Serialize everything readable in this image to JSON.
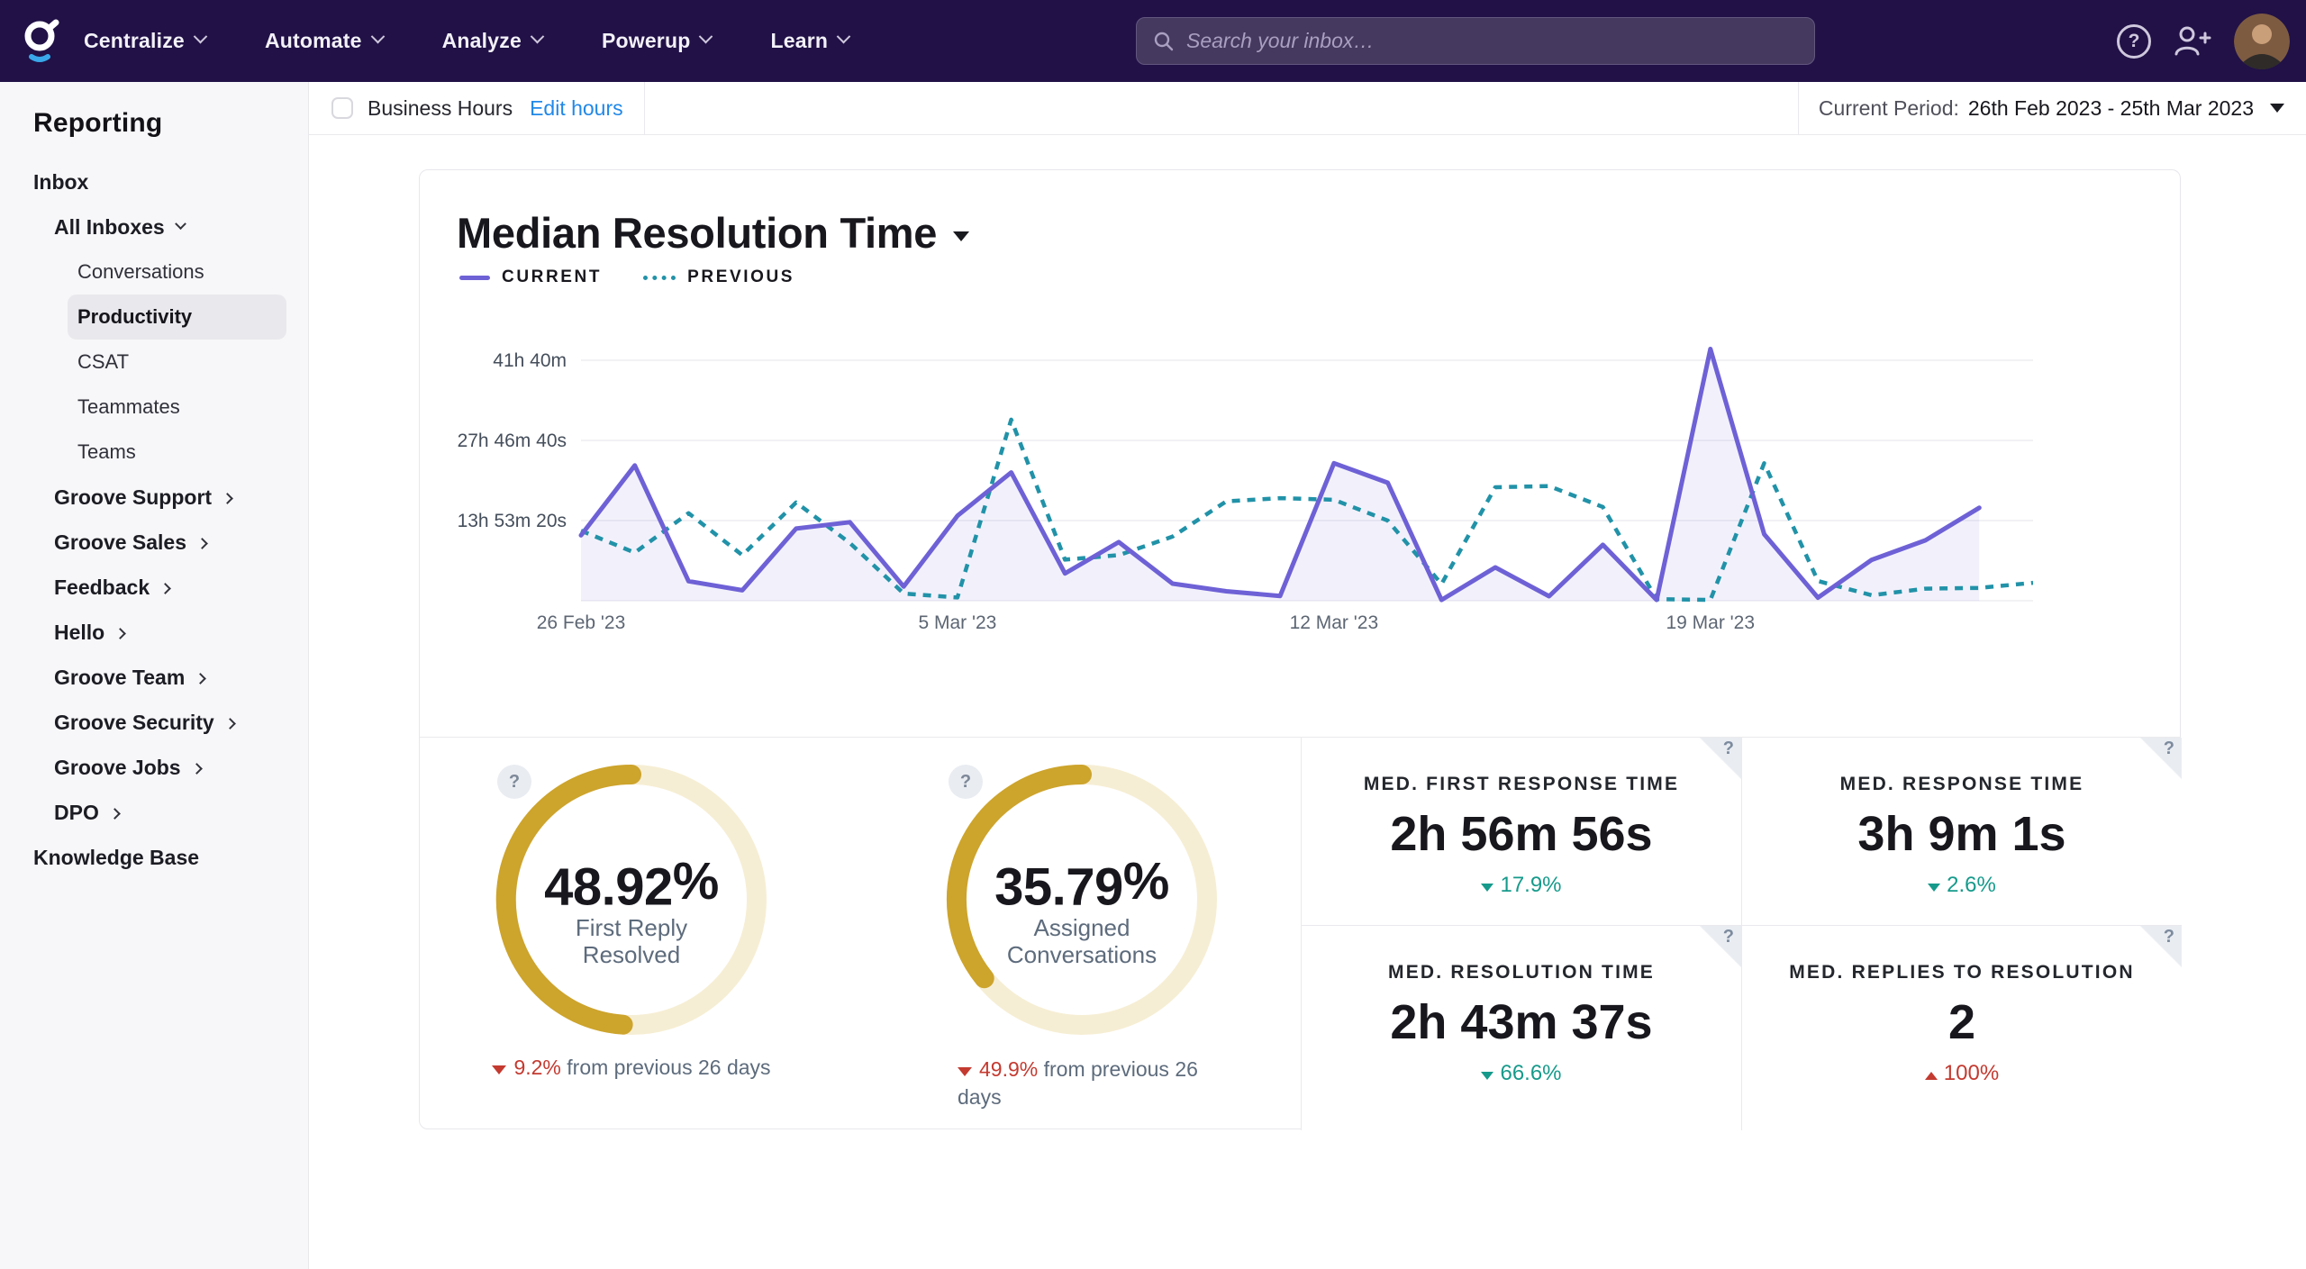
{
  "nav": {
    "brand": "Groove",
    "items": [
      {
        "label": "Centralize"
      },
      {
        "label": "Automate"
      },
      {
        "label": "Analyze"
      },
      {
        "label": "Powerup"
      },
      {
        "label": "Learn"
      }
    ],
    "search": {
      "placeholder": "Search your inbox…"
    },
    "right_icons": [
      "help-icon",
      "add-user-icon",
      "avatar"
    ]
  },
  "sidebar": {
    "title": "Reporting",
    "items": [
      {
        "label": "Inbox",
        "level": 1
      },
      {
        "label": "All Inboxes",
        "level": 2,
        "chevron": "down"
      },
      {
        "label": "Conversations",
        "level": 3
      },
      {
        "label": "Productivity",
        "level": 3,
        "selected": true
      },
      {
        "label": "CSAT",
        "level": 3
      },
      {
        "label": "Teammates",
        "level": 3
      },
      {
        "label": "Teams",
        "level": 3
      },
      {
        "label": "Groove Support",
        "level": 2,
        "chevron": "right"
      },
      {
        "label": "Groove Sales",
        "level": 2,
        "chevron": "right"
      },
      {
        "label": "Feedback",
        "level": 2,
        "chevron": "right"
      },
      {
        "label": "Hello",
        "level": 2,
        "chevron": "right"
      },
      {
        "label": "Groove Team",
        "level": 2,
        "chevron": "right"
      },
      {
        "label": "Groove Security",
        "level": 2,
        "chevron": "right"
      },
      {
        "label": "Groove Jobs",
        "level": 2,
        "chevron": "right"
      },
      {
        "label": "DPO",
        "level": 2,
        "chevron": "right"
      },
      {
        "label": "Knowledge Base",
        "level": 1
      }
    ]
  },
  "toolbar": {
    "business_hours_label": "Business Hours",
    "business_hours_checked": false,
    "edit_hours_label": "Edit hours",
    "period_label": "Current Period:",
    "period_value": "26th Feb 2023 - 25th Mar 2023"
  },
  "report": {
    "title": "Median Resolution Time",
    "legend": [
      {
        "name": "CURRENT",
        "style": "solid",
        "color": "#6e61d6"
      },
      {
        "name": "PREVIOUS",
        "style": "dotted",
        "color": "#2192a8"
      }
    ]
  },
  "chart_data": {
    "type": "line",
    "title": "Median Resolution Time",
    "x_count": 28,
    "categories": [
      "26 Feb",
      "27 Feb",
      "28 Feb",
      "1 Mar",
      "2 Mar",
      "3 Mar",
      "4 Mar",
      "5 Mar",
      "6 Mar",
      "7 Mar",
      "8 Mar",
      "9 Mar",
      "10 Mar",
      "11 Mar",
      "12 Mar",
      "13 Mar",
      "14 Mar",
      "15 Mar",
      "16 Mar",
      "17 Mar",
      "18 Mar",
      "19 Mar",
      "20 Mar",
      "21 Mar",
      "22 Mar",
      "23 Mar",
      "24 Mar",
      "25 Mar"
    ],
    "x_tick_labels": [
      {
        "index": 0,
        "label": "26 Feb '23"
      },
      {
        "index": 7,
        "label": "5 Mar '23"
      },
      {
        "index": 14,
        "label": "12 Mar '23"
      },
      {
        "index": 21,
        "label": "19 Mar '23"
      }
    ],
    "y_ticks": [
      {
        "value_seconds": 50000,
        "label": "13h 53m 20s"
      },
      {
        "value_seconds": 100000,
        "label": "27h 46m 40s"
      },
      {
        "value_seconds": 150000,
        "label": "41h 40m"
      }
    ],
    "grid": true,
    "legend_position": "top-left",
    "series": [
      {
        "name": "CURRENT",
        "style": "solid",
        "color": "#6e61d6",
        "fill": "rgba(110,97,214,0.09)",
        "values_seconds": [
          40800,
          84400,
          12200,
          6500,
          45000,
          49000,
          8800,
          53000,
          80000,
          17000,
          36600,
          10700,
          5900,
          3000,
          85800,
          73600,
          500,
          20800,
          2800,
          34900,
          500,
          157000,
          41500,
          1900,
          25500,
          37700,
          58000,
          null
        ]
      },
      {
        "name": "PREVIOUS",
        "style": "dashed",
        "color": "#2192a8",
        "values_seconds": [
          43700,
          30000,
          54600,
          28400,
          61300,
          36000,
          4500,
          2000,
          113000,
          25600,
          28400,
          40000,
          62000,
          64000,
          63000,
          50000,
          10400,
          70800,
          71500,
          58500,
          1000,
          500,
          85800,
          12300,
          3400,
          7500,
          8000,
          11200
        ]
      }
    ]
  },
  "donuts": [
    {
      "value": "48.92",
      "unit": "%",
      "arc_percent": 48.92,
      "label_lines": [
        "First Reply",
        "Resolved"
      ],
      "delta_value": "9.2%",
      "delta_direction": "down",
      "delta_color": "#c43a30",
      "delta_rest": " from previous 26 days"
    },
    {
      "value": "35.79",
      "unit": "%",
      "arc_percent": 35.79,
      "label_lines": [
        "Assigned",
        "Conversations"
      ],
      "delta_value": "49.9%",
      "delta_direction": "down",
      "delta_color": "#c43a30",
      "delta_rest": " from previous 26 days"
    }
  ],
  "donut_colors": {
    "arc": "#cda42c",
    "track": "#f6eed4"
  },
  "metrics": [
    {
      "label": "MED. FIRST RESPONSE TIME",
      "value": "2h 56m 56s",
      "delta": "17.9%",
      "direction": "down",
      "color": "#169a8b"
    },
    {
      "label": "MED. RESPONSE TIME",
      "value": "3h 9m 1s",
      "delta": "2.6%",
      "direction": "down",
      "color": "#169a8b"
    },
    {
      "label": "MED. RESOLUTION TIME",
      "value": "2h 43m 37s",
      "delta": "66.6%",
      "direction": "down",
      "color": "#169a8b"
    },
    {
      "label": "MED. REPLIES TO RESOLUTION",
      "value": "2",
      "delta": "100%",
      "direction": "up",
      "color": "#c43a30"
    }
  ]
}
